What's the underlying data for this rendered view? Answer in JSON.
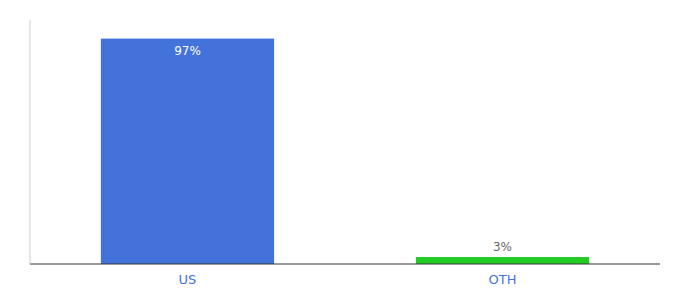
{
  "chart_data": {
    "type": "bar",
    "categories": [
      "US",
      "OTH"
    ],
    "values": [
      97,
      3
    ],
    "value_labels": [
      "97%",
      "3%"
    ],
    "colors": [
      "#4472db",
      "#22cc22"
    ],
    "ylim": [
      0,
      105
    ],
    "data_labels": true,
    "tick_labels": "x",
    "grid": false
  }
}
